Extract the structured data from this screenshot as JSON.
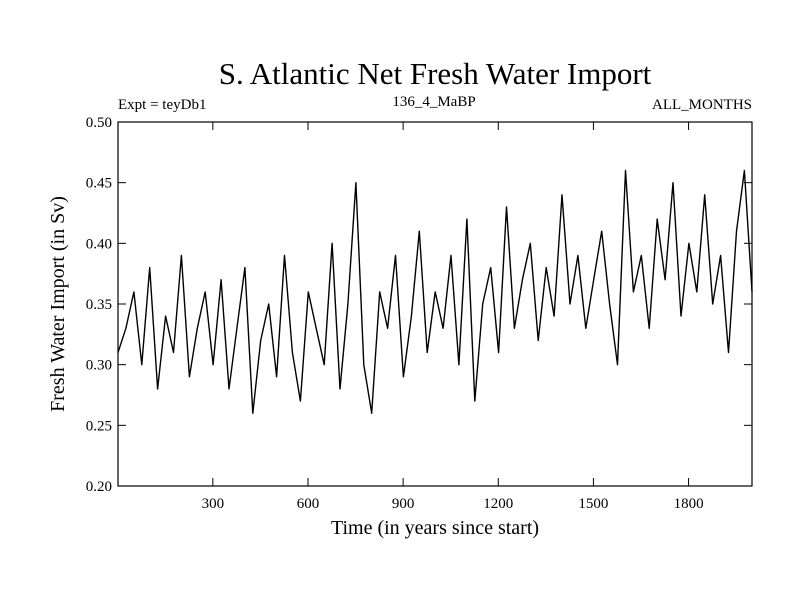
{
  "chart_data": {
    "type": "line",
    "title": "S. Atlantic Net Fresh Water Import",
    "subtitle_left": "Expt = teyDb1",
    "subtitle_center": "136_4_MaBP",
    "subtitle_right": "ALL_MONTHS",
    "xlabel": "Time (in years since start)",
    "ylabel": "Fresh Water Import (in Sv)",
    "xlim": [
      1,
      2000
    ],
    "ylim": [
      0.2,
      0.5
    ],
    "xticks": [
      300,
      600,
      900,
      1200,
      1500,
      1800
    ],
    "xtick_labels": [
      "300",
      "600",
      "900",
      "1200",
      "1500",
      "1800"
    ],
    "yticks": [
      0.2,
      0.25,
      0.3,
      0.35,
      0.4,
      0.45,
      0.5
    ],
    "ytick_labels": [
      "0.20",
      "0.25",
      "0.30",
      "0.35",
      "0.40",
      "0.45",
      "0.50"
    ],
    "series": [
      {
        "name": "Fresh Water Import",
        "color": "#000000",
        "x": [
          1,
          26,
          51,
          76,
          101,
          126,
          151,
          176,
          201,
          226,
          251,
          276,
          301,
          326,
          351,
          376,
          401,
          426,
          451,
          476,
          501,
          526,
          551,
          576,
          601,
          626,
          651,
          676,
          701,
          726,
          751,
          776,
          801,
          826,
          851,
          876,
          901,
          926,
          951,
          976,
          1001,
          1026,
          1051,
          1076,
          1101,
          1126,
          1151,
          1176,
          1201,
          1226,
          1251,
          1276,
          1301,
          1326,
          1351,
          1376,
          1401,
          1426,
          1451,
          1476,
          1501,
          1526,
          1551,
          1576,
          1601,
          1626,
          1651,
          1676,
          1701,
          1726,
          1751,
          1776,
          1801,
          1826,
          1851,
          1876,
          1901,
          1926,
          1951,
          1976,
          2000
        ],
        "values": [
          0.31,
          0.33,
          0.36,
          0.3,
          0.38,
          0.28,
          0.34,
          0.31,
          0.39,
          0.29,
          0.33,
          0.36,
          0.3,
          0.37,
          0.28,
          0.33,
          0.38,
          0.26,
          0.32,
          0.35,
          0.29,
          0.39,
          0.31,
          0.27,
          0.36,
          0.33,
          0.3,
          0.4,
          0.28,
          0.35,
          0.45,
          0.3,
          0.26,
          0.36,
          0.33,
          0.39,
          0.29,
          0.34,
          0.41,
          0.31,
          0.36,
          0.33,
          0.39,
          0.3,
          0.42,
          0.27,
          0.35,
          0.38,
          0.31,
          0.43,
          0.33,
          0.37,
          0.4,
          0.32,
          0.38,
          0.34,
          0.44,
          0.35,
          0.39,
          0.33,
          0.37,
          0.41,
          0.35,
          0.3,
          0.46,
          0.36,
          0.39,
          0.33,
          0.42,
          0.37,
          0.45,
          0.34,
          0.4,
          0.36,
          0.44,
          0.35,
          0.39,
          0.31,
          0.41,
          0.46,
          0.36
        ]
      }
    ]
  }
}
